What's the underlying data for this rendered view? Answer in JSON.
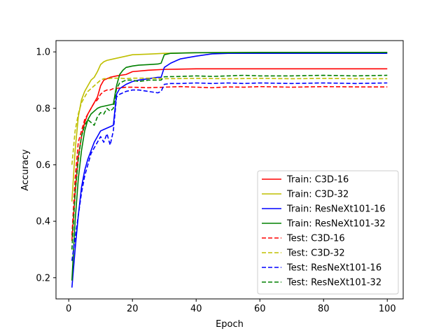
{
  "chart_data": {
    "type": "line",
    "xlabel": "Epoch",
    "ylabel": "Accuracy",
    "xlim": [
      -4,
      105
    ],
    "ylim": [
      0.125,
      1.04
    ],
    "xticks": [
      0,
      20,
      40,
      60,
      80,
      100
    ],
    "yticks": [
      0.2,
      0.4,
      0.6,
      0.8,
      1.0
    ],
    "ytick_labels": [
      "0.2",
      "0.4",
      "0.6",
      "0.8",
      "1.0"
    ],
    "legend_position": "lower right",
    "grid": false,
    "series": [
      {
        "name": "Train: C3D-16",
        "color": "#ff0000",
        "style": "solid",
        "points": [
          [
            1,
            0.33
          ],
          [
            2,
            0.5
          ],
          [
            3,
            0.63
          ],
          [
            4,
            0.7
          ],
          [
            5,
            0.75
          ],
          [
            6,
            0.78
          ],
          [
            7,
            0.8
          ],
          [
            8,
            0.82
          ],
          [
            9,
            0.84
          ],
          [
            10,
            0.88
          ],
          [
            11,
            0.9
          ],
          [
            12,
            0.905
          ],
          [
            13,
            0.91
          ],
          [
            15,
            0.915
          ],
          [
            18,
            0.92
          ],
          [
            20,
            0.93
          ],
          [
            25,
            0.935
          ],
          [
            30,
            0.938
          ],
          [
            40,
            0.94
          ],
          [
            60,
            0.94
          ],
          [
            80,
            0.94
          ],
          [
            100,
            0.94
          ]
        ]
      },
      {
        "name": "Train: C3D-32",
        "color": "#bfbf00",
        "style": "solid",
        "points": [
          [
            1,
            0.47
          ],
          [
            2,
            0.65
          ],
          [
            3,
            0.77
          ],
          [
            4,
            0.83
          ],
          [
            5,
            0.86
          ],
          [
            6,
            0.88
          ],
          [
            7,
            0.9
          ],
          [
            8,
            0.91
          ],
          [
            9,
            0.93
          ],
          [
            10,
            0.955
          ],
          [
            11,
            0.965
          ],
          [
            12,
            0.97
          ],
          [
            14,
            0.975
          ],
          [
            16,
            0.98
          ],
          [
            18,
            0.985
          ],
          [
            20,
            0.99
          ],
          [
            25,
            0.992
          ],
          [
            30,
            0.995
          ],
          [
            40,
            0.997
          ],
          [
            60,
            0.998
          ],
          [
            80,
            0.998
          ],
          [
            100,
            0.998
          ]
        ]
      },
      {
        "name": "Train: ResNeXt101-16",
        "color": "#0000ff",
        "style": "solid",
        "points": [
          [
            1,
            0.165
          ],
          [
            2,
            0.3
          ],
          [
            3,
            0.42
          ],
          [
            4,
            0.52
          ],
          [
            5,
            0.58
          ],
          [
            6,
            0.62
          ],
          [
            7,
            0.65
          ],
          [
            8,
            0.68
          ],
          [
            9,
            0.7
          ],
          [
            10,
            0.72
          ],
          [
            11,
            0.725
          ],
          [
            12,
            0.73
          ],
          [
            13,
            0.735
          ],
          [
            14,
            0.74
          ],
          [
            15,
            0.85
          ],
          [
            16,
            0.87
          ],
          [
            18,
            0.885
          ],
          [
            20,
            0.895
          ],
          [
            22,
            0.9
          ],
          [
            25,
            0.905
          ],
          [
            28,
            0.91
          ],
          [
            29,
            0.91
          ],
          [
            30,
            0.945
          ],
          [
            32,
            0.96
          ],
          [
            35,
            0.975
          ],
          [
            40,
            0.985
          ],
          [
            45,
            0.993
          ],
          [
            50,
            0.995
          ],
          [
            60,
            0.995
          ],
          [
            80,
            0.995
          ],
          [
            100,
            0.995
          ]
        ]
      },
      {
        "name": "Train: ResNeXt101-32",
        "color": "#008000",
        "style": "solid",
        "points": [
          [
            1,
            0.19
          ],
          [
            2,
            0.4
          ],
          [
            3,
            0.55
          ],
          [
            4,
            0.65
          ],
          [
            5,
            0.72
          ],
          [
            6,
            0.76
          ],
          [
            7,
            0.78
          ],
          [
            8,
            0.79
          ],
          [
            9,
            0.8
          ],
          [
            10,
            0.805
          ],
          [
            12,
            0.81
          ],
          [
            14,
            0.815
          ],
          [
            15,
            0.88
          ],
          [
            16,
            0.92
          ],
          [
            17,
            0.935
          ],
          [
            18,
            0.945
          ],
          [
            20,
            0.95
          ],
          [
            22,
            0.953
          ],
          [
            25,
            0.955
          ],
          [
            28,
            0.957
          ],
          [
            29,
            0.96
          ],
          [
            30,
            0.99
          ],
          [
            32,
            0.995
          ],
          [
            40,
            0.997
          ],
          [
            60,
            0.998
          ],
          [
            80,
            0.998
          ],
          [
            100,
            0.998
          ]
        ]
      },
      {
        "name": "Test: C3D-16",
        "color": "#ff0000",
        "style": "dashed",
        "points": [
          [
            1,
            0.35
          ],
          [
            2,
            0.55
          ],
          [
            3,
            0.68
          ],
          [
            4,
            0.72
          ],
          [
            5,
            0.76
          ],
          [
            6,
            0.78
          ],
          [
            7,
            0.8
          ],
          [
            8,
            0.82
          ],
          [
            9,
            0.83
          ],
          [
            10,
            0.85
          ],
          [
            11,
            0.86
          ],
          [
            12,
            0.865
          ],
          [
            13,
            0.865
          ],
          [
            14,
            0.87
          ],
          [
            16,
            0.872
          ],
          [
            18,
            0.875
          ],
          [
            20,
            0.875
          ],
          [
            25,
            0.873
          ],
          [
            30,
            0.875
          ],
          [
            35,
            0.877
          ],
          [
            40,
            0.875
          ],
          [
            45,
            0.873
          ],
          [
            50,
            0.876
          ],
          [
            55,
            0.875
          ],
          [
            60,
            0.877
          ],
          [
            70,
            0.875
          ],
          [
            80,
            0.877
          ],
          [
            90,
            0.876
          ],
          [
            100,
            0.876
          ]
        ]
      },
      {
        "name": "Test: C3D-32",
        "color": "#bfbf00",
        "style": "dashed",
        "points": [
          [
            1,
            0.6
          ],
          [
            2,
            0.72
          ],
          [
            3,
            0.78
          ],
          [
            4,
            0.82
          ],
          [
            5,
            0.84
          ],
          [
            6,
            0.86
          ],
          [
            7,
            0.87
          ],
          [
            8,
            0.88
          ],
          [
            9,
            0.89
          ],
          [
            10,
            0.9
          ],
          [
            11,
            0.905
          ],
          [
            12,
            0.905
          ],
          [
            14,
            0.907
          ],
          [
            16,
            0.907
          ],
          [
            18,
            0.905
          ],
          [
            20,
            0.907
          ],
          [
            25,
            0.907
          ],
          [
            30,
            0.905
          ],
          [
            40,
            0.906
          ],
          [
            50,
            0.905
          ],
          [
            60,
            0.906
          ],
          [
            70,
            0.905
          ],
          [
            80,
            0.906
          ],
          [
            90,
            0.905
          ],
          [
            100,
            0.905
          ]
        ]
      },
      {
        "name": "Test: ResNeXt101-16",
        "color": "#0000ff",
        "style": "dashed",
        "points": [
          [
            1,
            0.26
          ],
          [
            2,
            0.34
          ],
          [
            3,
            0.42
          ],
          [
            4,
            0.5
          ],
          [
            5,
            0.56
          ],
          [
            6,
            0.6
          ],
          [
            7,
            0.64
          ],
          [
            8,
            0.66
          ],
          [
            9,
            0.68
          ],
          [
            10,
            0.7
          ],
          [
            11,
            0.68
          ],
          [
            12,
            0.71
          ],
          [
            13,
            0.67
          ],
          [
            14,
            0.72
          ],
          [
            15,
            0.84
          ],
          [
            16,
            0.85
          ],
          [
            18,
            0.86
          ],
          [
            20,
            0.865
          ],
          [
            22,
            0.865
          ],
          [
            25,
            0.86
          ],
          [
            28,
            0.855
          ],
          [
            29,
            0.86
          ],
          [
            30,
            0.885
          ],
          [
            32,
            0.888
          ],
          [
            35,
            0.888
          ],
          [
            40,
            0.89
          ],
          [
            45,
            0.888
          ],
          [
            50,
            0.89
          ],
          [
            55,
            0.888
          ],
          [
            60,
            0.89
          ],
          [
            70,
            0.888
          ],
          [
            80,
            0.89
          ],
          [
            90,
            0.888
          ],
          [
            100,
            0.89
          ]
        ]
      },
      {
        "name": "Test: ResNeXt101-32",
        "color": "#008000",
        "style": "dashed",
        "points": [
          [
            1,
            0.3
          ],
          [
            2,
            0.5
          ],
          [
            3,
            0.62
          ],
          [
            4,
            0.7
          ],
          [
            5,
            0.74
          ],
          [
            6,
            0.76
          ],
          [
            7,
            0.75
          ],
          [
            8,
            0.74
          ],
          [
            9,
            0.77
          ],
          [
            10,
            0.785
          ],
          [
            11,
            0.78
          ],
          [
            12,
            0.8
          ],
          [
            13,
            0.79
          ],
          [
            14,
            0.8
          ],
          [
            15,
            0.87
          ],
          [
            16,
            0.89
          ],
          [
            18,
            0.9
          ],
          [
            20,
            0.9
          ],
          [
            22,
            0.895
          ],
          [
            25,
            0.9
          ],
          [
            28,
            0.9
          ],
          [
            29,
            0.9
          ],
          [
            30,
            0.912
          ],
          [
            35,
            0.913
          ],
          [
            40,
            0.915
          ],
          [
            45,
            0.913
          ],
          [
            50,
            0.915
          ],
          [
            55,
            0.917
          ],
          [
            60,
            0.915
          ],
          [
            70,
            0.915
          ],
          [
            80,
            0.917
          ],
          [
            90,
            0.915
          ],
          [
            100,
            0.917
          ]
        ]
      }
    ]
  }
}
